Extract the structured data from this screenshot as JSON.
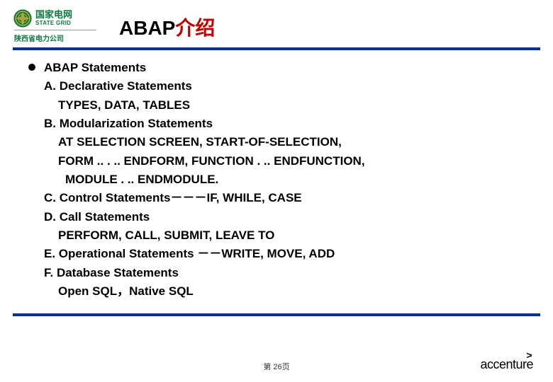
{
  "logo": {
    "company_cn": "国家电网",
    "company_en": "STATE GRID",
    "sub_company": "陕西省电力公司",
    "icon_bg": "#0a7a3e",
    "icon_ring": "#d4af37"
  },
  "title": {
    "part1": "ABAP",
    "part2": "介绍"
  },
  "content": {
    "heading": "ABAP Statements",
    "items": [
      {
        "cls": "indent-1",
        "text": "A. Declarative Statements"
      },
      {
        "cls": "indent-2",
        "text": "TYPES, DATA, TABLES"
      },
      {
        "cls": "indent-1",
        "text": "B. Modularization Statements"
      },
      {
        "cls": "indent-2",
        "text": "AT SELECTION SCREEN, START-OF-SELECTION,"
      },
      {
        "cls": "indent-2",
        "text": "FORM .. . .. ENDFORM, FUNCTION . .. ENDFUNCTION,"
      },
      {
        "cls": "indent-2b",
        "text": "MODULE . .. ENDMODULE."
      },
      {
        "cls": "indent-1",
        "text": "C. Control Statements－－－IF, WHILE, CASE"
      },
      {
        "cls": "indent-1",
        "text": "D. Call Statements"
      },
      {
        "cls": "indent-2",
        "text": "PERFORM, CALL, SUBMIT, LEAVE TO"
      },
      {
        "cls": "indent-1",
        "text": "E. Operational Statements －－WRITE, MOVE, ADD"
      },
      {
        "cls": "indent-1",
        "text": "F. Database Statements"
      },
      {
        "cls": "indent-2",
        "text": "Open SQL，Native SQL"
      }
    ]
  },
  "footer": {
    "page": "第 26页",
    "brand": "accenture",
    "brand_symbol": ">"
  }
}
